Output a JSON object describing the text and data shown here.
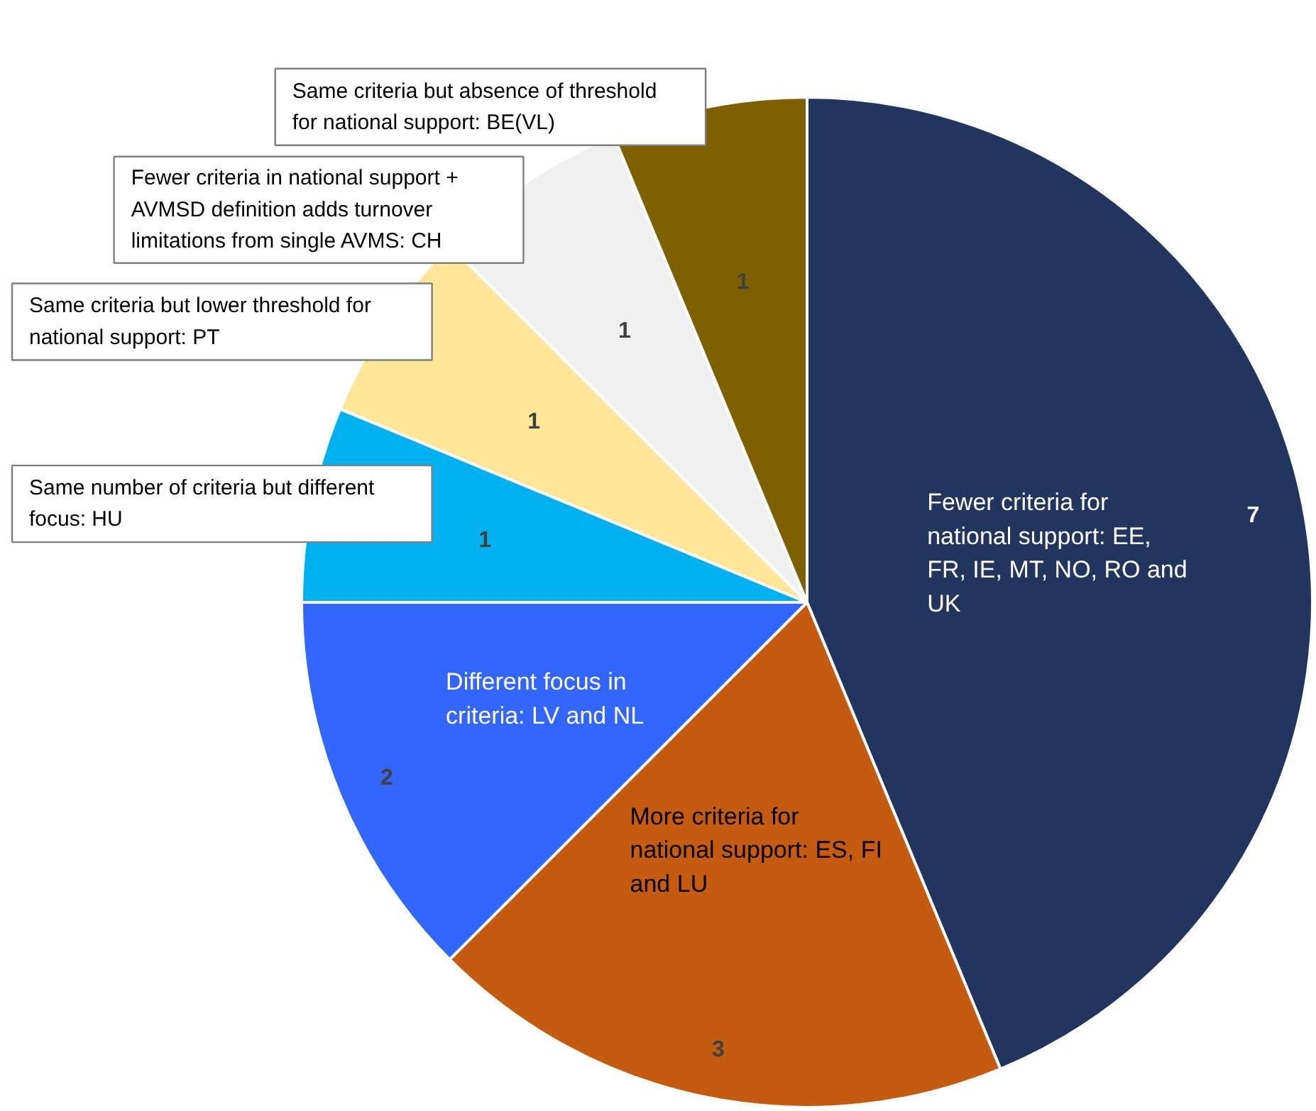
{
  "chart_data": {
    "type": "pie",
    "categories": [
      "Fewer criteria for national support: EE, FR, IE, MT, NO, RO and UK",
      "More criteria for national support: ES, FI and LU",
      "Different focus in criteria: LV and NL",
      "Same number of criteria but different focus: HU",
      "Same criteria but lower threshold for national support: PT",
      "Fewer criteria in national support + AVMSD definition adds turnover limitations from single AVMS: CH",
      "Same criteria but absence of threshold for national support: BE(VL)"
    ],
    "values": [
      7,
      3,
      2,
      1,
      1,
      1,
      1
    ],
    "colors": [
      "#22355e",
      "#c55a11",
      "#3366ff",
      "#00b0f0",
      "#ffe699",
      "#f0f0f0",
      "#7f6000"
    ],
    "data_labels": true
  }
}
